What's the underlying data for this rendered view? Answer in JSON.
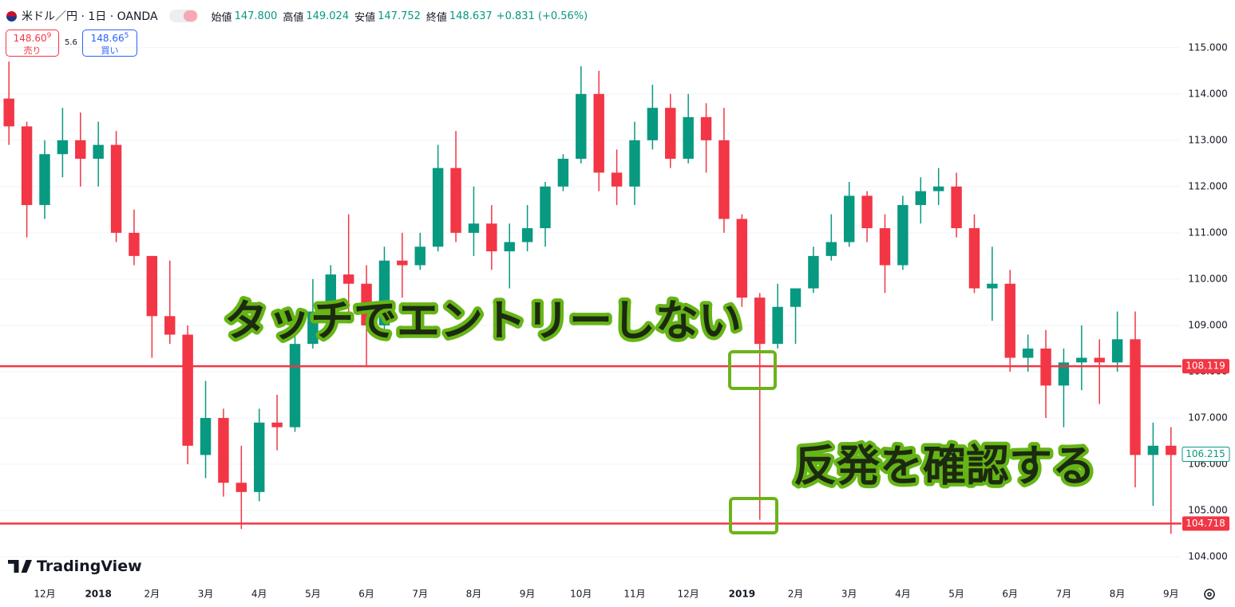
{
  "header": {
    "symbol": "米ドル／円 · 1日 · OANDA",
    "ohlc": [
      {
        "label": "始値",
        "value": "147.800"
      },
      {
        "label": "高値",
        "value": "149.024"
      },
      {
        "label": "安値",
        "value": "147.752"
      },
      {
        "label": "終値",
        "value": "148.637"
      }
    ],
    "change": "+0.831 (+0.56%)",
    "sell": {
      "price": "148.60",
      "pip": "9",
      "label": "売り"
    },
    "spread": "5.6",
    "buy": {
      "price": "148.66",
      "pip": "5",
      "label": "買い"
    },
    "brand": "TradingView"
  },
  "chart_data": {
    "type": "candlestick",
    "categories": [
      null,
      null,
      "12月",
      null,
      null,
      "2018",
      null,
      null,
      "2月",
      null,
      null,
      "3月",
      null,
      null,
      "4月",
      null,
      null,
      "5月",
      null,
      null,
      "6月",
      null,
      null,
      "7月",
      null,
      null,
      "8月",
      null,
      null,
      "9月",
      null,
      null,
      "10月",
      null,
      null,
      "11月",
      null,
      null,
      "12月",
      null,
      null,
      "2019",
      null,
      null,
      "2月",
      null,
      null,
      "3月",
      null,
      null,
      "4月",
      null,
      null,
      "5月",
      null,
      null,
      "6月",
      null,
      null,
      "7月",
      null,
      null,
      "8月",
      null,
      null,
      "9月"
    ],
    "open": [
      113.9,
      113.3,
      111.6,
      112.7,
      113.0,
      112.6,
      112.9,
      111.0,
      110.5,
      109.2,
      108.8,
      106.2,
      107.0,
      105.6,
      105.4,
      106.9,
      106.8,
      108.6,
      109.3,
      110.1,
      109.9,
      109.0,
      110.4,
      110.3,
      110.7,
      112.4,
      111.0,
      111.2,
      110.6,
      110.8,
      111.1,
      112.0,
      112.6,
      114.0,
      112.3,
      112.0,
      113.0,
      113.7,
      112.6,
      113.5,
      113.0,
      111.3,
      109.6,
      108.6,
      109.4,
      109.8,
      110.5,
      110.8,
      111.8,
      111.1,
      110.3,
      111.6,
      111.9,
      112.0,
      111.1,
      109.8,
      109.9,
      108.3,
      108.5,
      107.7,
      108.2,
      108.3,
      108.2,
      108.7,
      106.2,
      106.4
    ],
    "high": [
      114.7,
      113.4,
      113.0,
      113.7,
      113.6,
      113.4,
      113.2,
      111.5,
      110.5,
      110.4,
      109.0,
      107.8,
      107.2,
      106.4,
      107.2,
      107.5,
      108.8,
      110.0,
      110.3,
      111.4,
      110.3,
      110.7,
      111.0,
      111.0,
      112.9,
      113.2,
      112.0,
      111.6,
      111.2,
      111.6,
      112.1,
      112.7,
      114.6,
      114.5,
      112.8,
      113.4,
      114.2,
      114.0,
      114.0,
      113.8,
      113.7,
      111.4,
      109.7,
      109.9,
      109.8,
      110.7,
      111.4,
      112.1,
      111.9,
      111.4,
      111.8,
      112.2,
      112.4,
      112.3,
      111.4,
      110.7,
      110.2,
      108.8,
      108.9,
      108.5,
      109.0,
      108.7,
      109.3,
      109.3,
      106.9,
      106.8
    ],
    "low": [
      112.9,
      110.9,
      111.3,
      112.2,
      112.0,
      112.0,
      110.8,
      110.3,
      108.3,
      108.6,
      106.0,
      105.7,
      105.3,
      104.6,
      105.2,
      106.3,
      106.7,
      108.5,
      109.0,
      109.2,
      108.1,
      108.9,
      109.6,
      110.2,
      110.6,
      110.8,
      110.5,
      110.2,
      109.8,
      110.6,
      110.7,
      111.9,
      112.5,
      111.9,
      111.6,
      111.6,
      112.8,
      112.4,
      112.5,
      112.3,
      111.0,
      109.4,
      104.8,
      108.5,
      108.6,
      109.7,
      110.4,
      110.7,
      110.8,
      109.7,
      110.2,
      111.2,
      111.6,
      110.9,
      109.7,
      109.1,
      108.0,
      108.0,
      107.0,
      106.8,
      107.6,
      107.3,
      108.0,
      105.5,
      105.1,
      104.5
    ],
    "close": [
      113.3,
      111.6,
      112.7,
      113.0,
      112.6,
      112.9,
      111.0,
      110.5,
      109.2,
      108.8,
      106.4,
      107.0,
      105.6,
      105.4,
      106.9,
      106.8,
      108.6,
      109.3,
      110.1,
      109.9,
      109.0,
      110.4,
      110.3,
      110.7,
      112.4,
      111.0,
      111.2,
      110.6,
      110.8,
      111.1,
      112.0,
      112.6,
      114.0,
      112.3,
      112.0,
      113.0,
      113.7,
      112.6,
      113.5,
      113.0,
      111.3,
      109.6,
      108.6,
      109.4,
      109.8,
      110.5,
      110.8,
      111.8,
      111.1,
      110.3,
      111.6,
      111.9,
      112.0,
      111.1,
      109.8,
      109.9,
      108.3,
      108.5,
      107.7,
      108.2,
      108.3,
      108.2,
      108.7,
      106.2,
      106.4,
      106.2
    ],
    "up_color": "#089981",
    "down_color": "#f23645",
    "ylim": [
      103.45,
      116.03
    ],
    "yticks": [
      {
        "value": 104,
        "label": "104.000"
      },
      {
        "value": 105,
        "label": "105.000"
      },
      {
        "value": 106,
        "label": "106.000"
      },
      {
        "value": 107,
        "label": "107.000"
      },
      {
        "value": 108,
        "label": "108.000"
      },
      {
        "value": 109,
        "label": "109.000"
      },
      {
        "value": 110,
        "label": "110.000"
      },
      {
        "value": 111,
        "label": "111.000"
      },
      {
        "value": 112,
        "label": "112.000"
      },
      {
        "value": 113,
        "label": "113.000"
      },
      {
        "value": 114,
        "label": "114.000"
      },
      {
        "value": 115,
        "label": "115.000"
      }
    ],
    "grid": true,
    "hlines": [
      {
        "value": 108.119,
        "label": "108.119",
        "color": "#f23645"
      },
      {
        "value": 104.718,
        "label": "104.718",
        "color": "#f23645"
      }
    ],
    "last_price": {
      "value": 106.215,
      "label": "106.215",
      "color": "#089981"
    },
    "annotations": [
      "タッチでエントリーしない",
      "反発を確認する"
    ]
  }
}
